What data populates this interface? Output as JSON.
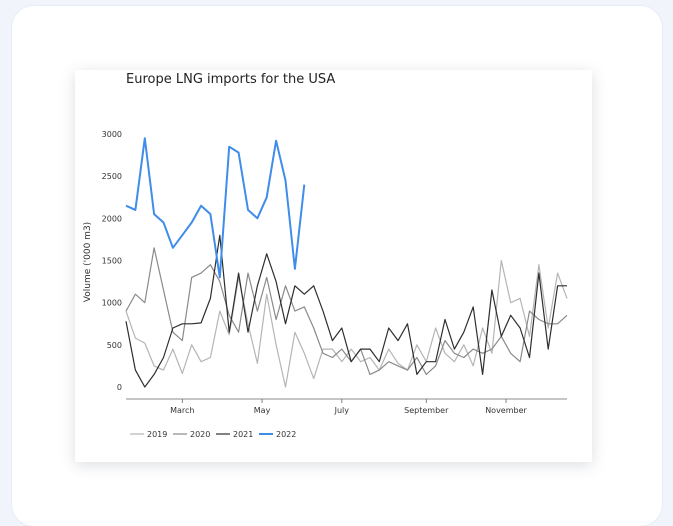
{
  "chart_data": {
    "type": "line",
    "title": "Europe LNG imports for the USA",
    "xlabel": "",
    "ylabel": "Volume ('000 m3)",
    "ylim": [
      0,
      3000
    ],
    "yticks": [
      0,
      500,
      1000,
      1500,
      2000,
      2500,
      3000
    ],
    "x_unit": "week of year",
    "xlim": [
      5,
      52
    ],
    "xticks": [
      {
        "week": 11,
        "label": "March"
      },
      {
        "week": 19.5,
        "label": "May"
      },
      {
        "week": 28,
        "label": "July"
      },
      {
        "week": 37,
        "label": "September"
      },
      {
        "week": 45.5,
        "label": "November"
      }
    ],
    "grid": false,
    "legend": "bottom",
    "series": [
      {
        "name": "2019",
        "color": "#b5b5b5",
        "x": [
          5,
          6,
          7,
          8,
          9,
          10,
          11,
          12,
          13,
          14,
          15,
          16,
          17,
          18,
          19,
          20,
          21,
          22,
          23,
          24,
          25,
          26,
          27,
          28,
          29,
          30,
          31,
          32,
          33,
          34,
          35,
          36,
          37,
          38,
          39,
          40,
          41,
          42,
          43,
          44,
          45,
          46,
          47,
          48,
          49,
          50,
          51,
          52
        ],
        "values": [
          900,
          580,
          520,
          250,
          200,
          450,
          160,
          500,
          300,
          350,
          900,
          620,
          1300,
          750,
          280,
          1100,
          500,
          0,
          650,
          400,
          100,
          450,
          450,
          300,
          450,
          300,
          350,
          200,
          450,
          280,
          200,
          500,
          300,
          700,
          400,
          300,
          500,
          250,
          700,
          400,
          1500,
          1000,
          1050,
          600,
          1450,
          700,
          1350,
          1050
        ]
      },
      {
        "name": "2020",
        "color": "#8a8a8a",
        "x": [
          5,
          6,
          7,
          8,
          9,
          10,
          11,
          12,
          13,
          14,
          15,
          16,
          17,
          18,
          19,
          20,
          21,
          22,
          23,
          24,
          25,
          26,
          27,
          28,
          29,
          30,
          31,
          32,
          33,
          34,
          35,
          36,
          37,
          38,
          39,
          40,
          41,
          42,
          43,
          44,
          45,
          46,
          47,
          48,
          49,
          50,
          51,
          52
        ],
        "values": [
          900,
          1100,
          1000,
          1650,
          1150,
          650,
          550,
          1300,
          1350,
          1450,
          1250,
          850,
          650,
          1350,
          900,
          1300,
          800,
          1200,
          900,
          950,
          700,
          400,
          350,
          450,
          300,
          450,
          150,
          200,
          300,
          250,
          200,
          350,
          150,
          250,
          550,
          400,
          350,
          450,
          400,
          450,
          600,
          400,
          300,
          900,
          800,
          750,
          750,
          850
        ]
      },
      {
        "name": "2021",
        "color": "#2e2e2e",
        "x": [
          5,
          6,
          7,
          8,
          9,
          10,
          11,
          12,
          13,
          14,
          15,
          16,
          17,
          18,
          19,
          20,
          21,
          22,
          23,
          24,
          25,
          26,
          27,
          28,
          29,
          30,
          31,
          32,
          33,
          34,
          35,
          36,
          37,
          38,
          39,
          40,
          41,
          42,
          43,
          44,
          45,
          46,
          47,
          48,
          49,
          50,
          51,
          52
        ],
        "values": [
          780,
          200,
          0,
          150,
          350,
          700,
          750,
          750,
          760,
          1050,
          1800,
          650,
          1350,
          650,
          1200,
          1580,
          1250,
          750,
          1200,
          1100,
          1200,
          900,
          550,
          700,
          300,
          450,
          450,
          300,
          700,
          550,
          750,
          150,
          300,
          300,
          800,
          450,
          650,
          950,
          150,
          1150,
          600,
          850,
          700,
          350,
          1350,
          450,
          1200,
          1200
        ]
      },
      {
        "name": "2022",
        "color": "#3f8ceb",
        "x": [
          5,
          6,
          7,
          8,
          9,
          10,
          11,
          12,
          13,
          14,
          15,
          16,
          17,
          18,
          19,
          20,
          21,
          22,
          23,
          24
        ],
        "values": [
          2150,
          2100,
          2950,
          2050,
          1950,
          1650,
          1800,
          1950,
          2150,
          2050,
          1300,
          2850,
          2780,
          2100,
          2000,
          2250,
          2920,
          2450,
          1400,
          2400
        ]
      }
    ]
  }
}
